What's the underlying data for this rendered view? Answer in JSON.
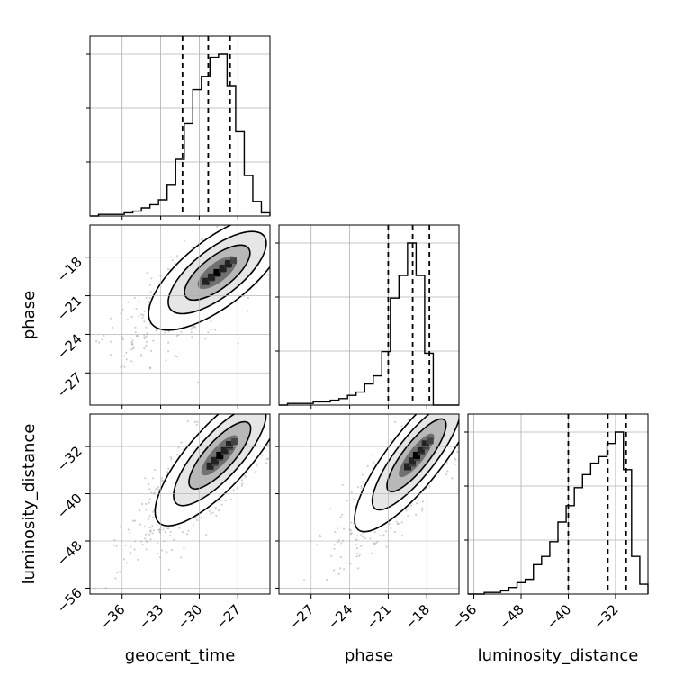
{
  "chart_data": {
    "type": "corner",
    "parameters": [
      "geocent_time",
      "phase",
      "luminosity_distance"
    ],
    "axis_labels": {
      "geocent_time": "geocent_time",
      "phase": "phase",
      "luminosity_distance": "luminosity_distance"
    },
    "ranges": {
      "geocent_time": [
        -38.5,
        -24.5
      ],
      "phase": [
        -29.5,
        -15.5
      ],
      "luminosity_distance": [
        -57,
        -26.5
      ]
    },
    "ticks": {
      "geocent_time": [
        -36,
        -33,
        -30,
        -27
      ],
      "phase": [
        -27,
        -24,
        -21,
        -18
      ],
      "luminosity_distance": [
        -56,
        -48,
        -40,
        -32
      ]
    },
    "tick_labels": {
      "geocent_time": [
        "−36",
        "−33",
        "−30",
        "−27"
      ],
      "phase": [
        "−27",
        "−24",
        "−21",
        "−18"
      ],
      "luminosity_distance": [
        "−56",
        "−48",
        "−40",
        "−32"
      ]
    },
    "quantiles": {
      "geocent_time": [
        -31.3,
        -29.3,
        -27.6
      ],
      "phase": [
        -21.0,
        -19.1,
        -17.8
      ],
      "luminosity_distance": [
        -40.0,
        -33.3,
        -30.2
      ]
    },
    "histograms": {
      "geocent_time": [
        0,
        1,
        1,
        1,
        2,
        3,
        5,
        7,
        10,
        19,
        35,
        57,
        78,
        86,
        98,
        100,
        80,
        52,
        25,
        9,
        2
      ],
      "phase": [
        0,
        1,
        1,
        1,
        2,
        2,
        3,
        4,
        6,
        8,
        13,
        18,
        33,
        66,
        80,
        100,
        80,
        32,
        0,
        0,
        0
      ],
      "luminosity_distance": [
        0,
        0,
        1,
        1,
        2,
        4,
        7,
        9,
        18,
        23,
        32,
        44,
        54,
        65,
        73,
        80,
        84,
        92,
        99,
        76,
        23,
        6
      ]
    },
    "grid": true,
    "quantile_lines": "dashed"
  }
}
